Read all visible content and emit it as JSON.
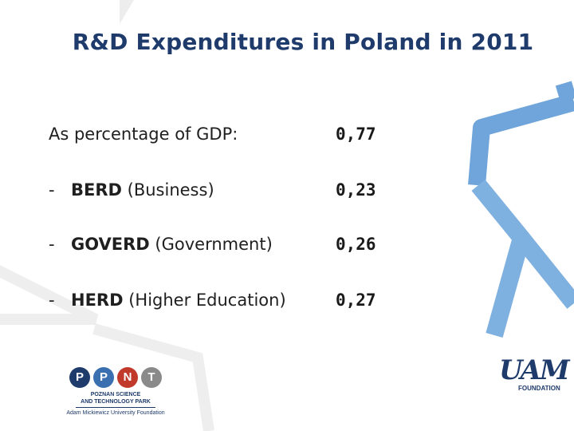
{
  "slide": {
    "title": "R&D Expenditures in Poland in 2011"
  },
  "rows": [
    {
      "label": "As percentage of GDP:",
      "value": "0,77"
    },
    {
      "dash": "-",
      "acronym": "BERD",
      "desc": " (Business)",
      "value": "0,23"
    },
    {
      "dash": "-",
      "acronym": "GOVERD",
      "desc": " (Government)",
      "value": "0,26"
    },
    {
      "dash": "-",
      "acronym": "HERD",
      "desc": " (Higher Education)",
      "value": "0,27"
    }
  ],
  "logos": {
    "ppnt": {
      "letters": [
        "P",
        "P",
        "N",
        "T"
      ],
      "line1": "POZNAN SCIENCE",
      "line2": "AND TECHNOLOGY PARK",
      "line3": "Adam Mickiewicz University Foundation",
      "colors": [
        "#1f3b6b",
        "#3a6fb0",
        "#c0392b",
        "#8a8a8a"
      ]
    },
    "uam": {
      "mark": "UAM",
      "sub": "FOUNDATION"
    }
  },
  "colors": {
    "title": "#1f3b6b",
    "hex_blue": "#5b9bd5",
    "hex_gray": "#e5e5e5"
  }
}
